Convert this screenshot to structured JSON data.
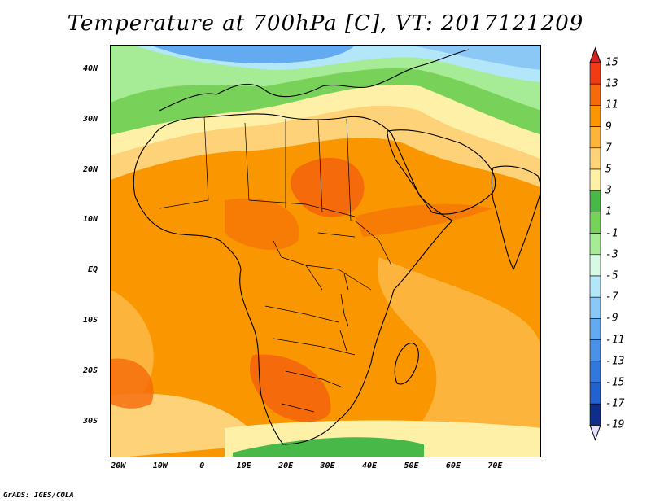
{
  "title": "Temperature at 700hPa [C], VT: 2017121209",
  "credit": "GrADS: IGES/COLA",
  "y_ticks": [
    {
      "label": "40N",
      "lat": 40
    },
    {
      "label": "30N",
      "lat": 30
    },
    {
      "label": "20N",
      "lat": 20
    },
    {
      "label": "10N",
      "lat": 10
    },
    {
      "label": "EQ",
      "lat": 0
    },
    {
      "label": "10S",
      "lat": -10
    },
    {
      "label": "20S",
      "lat": -20
    },
    {
      "label": "30S",
      "lat": -30
    }
  ],
  "x_ticks": [
    {
      "label": "20W",
      "lon": -20
    },
    {
      "label": "10W",
      "lon": -10
    },
    {
      "label": "0",
      "lon": 0
    },
    {
      "label": "10E",
      "lon": 10
    },
    {
      "label": "20E",
      "lon": 20
    },
    {
      "label": "30E",
      "lon": 30
    },
    {
      "label": "40E",
      "lon": 40
    },
    {
      "label": "50E",
      "lon": 50
    },
    {
      "label": "60E",
      "lon": 60
    },
    {
      "label": "70E",
      "lon": 70
    }
  ],
  "extent": {
    "lon_min": -22,
    "lon_max": 81,
    "lat_min": -37,
    "lat_max": 45
  },
  "colorbar": {
    "labels": [
      "15",
      "13",
      "11",
      "9",
      "7",
      "5",
      "3",
      "1",
      "-1",
      "-3",
      "-5",
      "-7",
      "-9",
      "-11",
      "-13",
      "-15",
      "-17",
      "-19"
    ],
    "colors": [
      "#f03c14",
      "#f56a0a",
      "#fa9600",
      "#fcb43c",
      "#fdd278",
      "#fef0a6",
      "#48b848",
      "#78d25a",
      "#a6ec96",
      "#d6fae6",
      "#b4e6fa",
      "#8cc8f5",
      "#64aaf0",
      "#4b91e8",
      "#3278dc",
      "#2360d0",
      "#0e2e8a"
    ],
    "top_color": "#d82020",
    "bottom_color": "#e8e0ff"
  },
  "fields": {
    "ocean_base": "#fcb43c",
    "regions": [
      {
        "name": "sahara-warm-core",
        "color": "#f56a0a"
      },
      {
        "name": "southern-africa-warm-core",
        "color": "#f56a0a"
      },
      {
        "name": "mediterranean-cold",
        "color": "#78d25a"
      },
      {
        "name": "europe-cold",
        "color": "#64aaf0"
      },
      {
        "name": "asia-cold",
        "color": "#8cc8f5"
      }
    ]
  }
}
